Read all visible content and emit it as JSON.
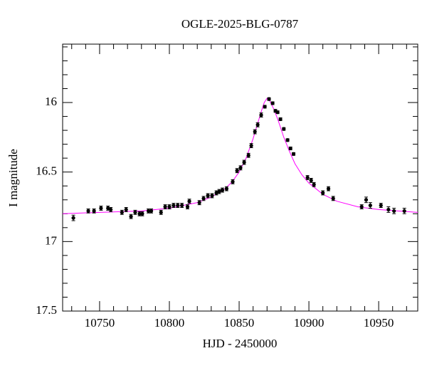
{
  "chart_data": {
    "type": "scatter",
    "title": "OGLE-2025-BLG-0787",
    "x_label": "HJD - 2450000",
    "y_label": "I magnitude",
    "xlim": [
      10723.5,
      10978
    ],
    "ylim": [
      17.5,
      15.58
    ],
    "xticks": [
      10750,
      10800,
      10850,
      10900,
      10950
    ],
    "yticks": [
      16,
      16.5,
      17,
      17.5
    ],
    "xminorticks": [
      10730,
      10740,
      10760,
      10770,
      10780,
      10790,
      10810,
      10820,
      10830,
      10840,
      10860,
      10870,
      10880,
      10890,
      10910,
      10920,
      10930,
      10940,
      10960,
      10970
    ],
    "yminorticks": [
      15.6,
      15.7,
      15.8,
      15.9,
      16.1,
      16.2,
      16.3,
      16.4,
      16.6,
      16.7,
      16.8,
      16.9,
      17.1,
      17.2,
      17.3,
      17.4
    ],
    "series": [
      {
        "color": "#000000",
        "x": [
          10731.2,
          10741.9,
          10746,
          10751,
          10756,
          10758,
          10766,
          10769,
          10772.5,
          10775.5,
          10778.6,
          10780.6,
          10785,
          10787,
          10794,
          10797,
          10800,
          10803,
          10806,
          10809,
          10813,
          10814.3,
          10821.5,
          10824.5,
          10827.6,
          10830.6,
          10833.7,
          10835.7,
          10838,
          10841,
          10845.4,
          10848.5,
          10851,
          10853.6,
          10856.7,
          10858.7,
          10861.3,
          10863.3,
          10865.8,
          10868.4,
          10871.4,
          10874,
          10876,
          10877.6,
          10879.6,
          10882,
          10884.7,
          10886.8,
          10889,
          10899,
          10901.6,
          10903.6,
          10910,
          10914,
          10917.4,
          10937.8,
          10941,
          10944,
          10951.6,
          10957,
          10961,
          10968.4
        ],
        "values": [
          16.83,
          16.78,
          16.78,
          16.76,
          16.76,
          16.77,
          16.79,
          16.77,
          16.82,
          16.79,
          16.8,
          16.8,
          16.78,
          16.78,
          16.79,
          16.75,
          16.75,
          16.74,
          16.74,
          16.74,
          16.75,
          16.71,
          16.72,
          16.69,
          16.67,
          16.67,
          16.65,
          16.64,
          16.63,
          16.62,
          16.57,
          16.49,
          16.47,
          16.43,
          16.38,
          16.31,
          16.21,
          16.16,
          16.09,
          16.03,
          15.975,
          16.005,
          16.06,
          16.07,
          16.12,
          16.19,
          16.27,
          16.33,
          16.37,
          16.54,
          16.56,
          16.59,
          16.65,
          16.62,
          16.69,
          16.75,
          16.7,
          16.74,
          16.74,
          16.77,
          16.78,
          16.78
        ],
        "errors": [
          0.02,
          0.015,
          0.015,
          0.015,
          0.015,
          0.015,
          0.015,
          0.015,
          0.015,
          0.015,
          0.015,
          0.015,
          0.015,
          0.015,
          0.015,
          0.015,
          0.015,
          0.015,
          0.015,
          0.015,
          0.015,
          0.015,
          0.015,
          0.015,
          0.015,
          0.015,
          0.015,
          0.015,
          0.015,
          0.015,
          0.015,
          0.015,
          0.015,
          0.015,
          0.015,
          0.015,
          0.015,
          0.015,
          0.015,
          0.01,
          0.01,
          0.01,
          0.01,
          0.01,
          0.01,
          0.01,
          0.01,
          0.01,
          0.01,
          0.015,
          0.015,
          0.015,
          0.015,
          0.015,
          0.015,
          0.015,
          0.02,
          0.02,
          0.015,
          0.02,
          0.02,
          0.02
        ]
      },
      {
        "type": "line",
        "color": "#ff00ff",
        "x": [
          10723.5,
          10750,
          10780,
          10800,
          10820,
          10830,
          10840,
          10845,
          10850,
          10855,
          10860,
          10863,
          10866,
          10868,
          10870,
          10872,
          10875,
          10878,
          10882,
          10886,
          10890,
          10895,
          10900,
          10910,
          10920,
          10935,
          10950,
          10978
        ],
        "values": [
          16.8,
          16.79,
          16.78,
          16.76,
          16.72,
          16.68,
          16.62,
          16.57,
          16.5,
          16.4,
          16.26,
          16.16,
          16.06,
          16.0,
          15.97,
          15.99,
          16.05,
          16.13,
          16.25,
          16.35,
          16.44,
          16.52,
          16.58,
          16.66,
          16.71,
          16.75,
          16.77,
          16.79
        ]
      }
    ]
  }
}
